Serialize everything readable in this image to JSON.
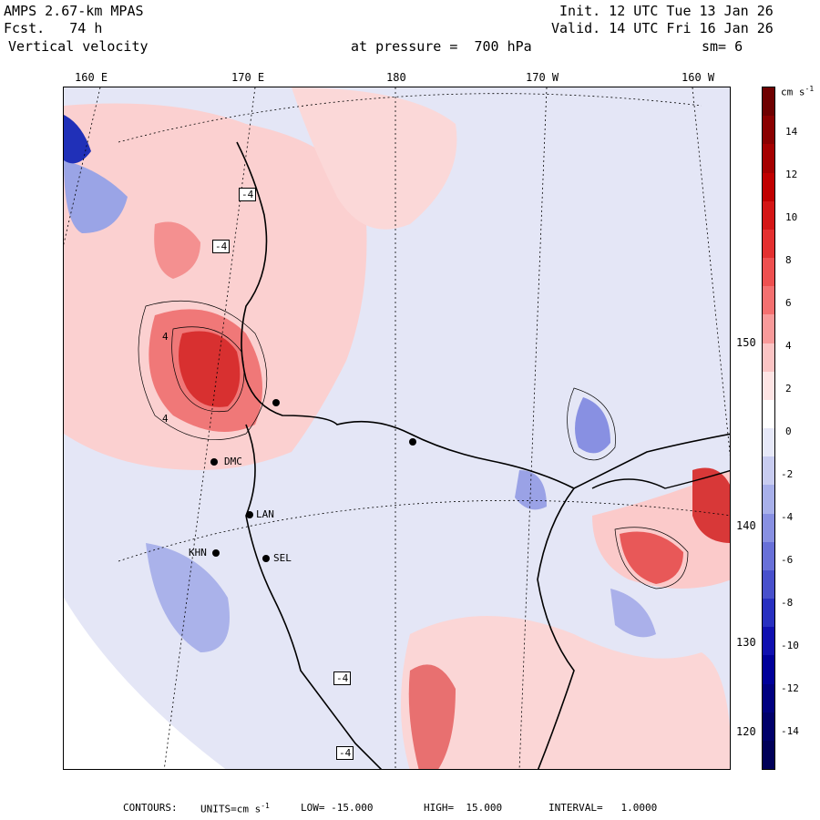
{
  "header": {
    "model": "AMPS 2.67-km MPAS",
    "forecast": "Fcst.   74 h",
    "field": "Vertical velocity",
    "init": "Init. 12 UTC Tue 13 Jan 26",
    "valid": "Valid. 14 UTC Fri 16 Jan 26",
    "level": "at pressure =  700 hPa",
    "smoothing": "sm= 6"
  },
  "longitude_labels": [
    "160 E",
    "170 E",
    "180",
    "170 W",
    "160 W"
  ],
  "latitude_labels": [
    "150 W",
    "140 W",
    "130 W",
    "120 W"
  ],
  "colorbar": {
    "units": "cm s",
    "units_exp": "-1",
    "ticks": [
      "14",
      "12",
      "10",
      "8",
      "6",
      "4",
      "2",
      "0",
      "-2",
      "-4",
      "-6",
      "-8",
      "-10",
      "-12",
      "-14"
    ],
    "colors_top_to_bottom": [
      "#6e0000",
      "#8a0000",
      "#a50000",
      "#c00000",
      "#d41616",
      "#e43030",
      "#ee5050",
      "#f47070",
      "#f89a9a",
      "#fbc4c4",
      "#fde4e4",
      "#ffffff",
      "#e6e8f8",
      "#c8ccf0",
      "#a8b0ea",
      "#8890e2",
      "#6870d8",
      "#4850cc",
      "#2830c0",
      "#1010b0",
      "#00009a",
      "#000080",
      "#00006a",
      "#000058"
    ]
  },
  "stations": [
    {
      "code": "DMC"
    },
    {
      "code": "LAN"
    },
    {
      "code": "KHN"
    },
    {
      "code": "SEL"
    }
  ],
  "extrema_markers": [
    "-4",
    "-4",
    "-4",
    "-4",
    "4",
    "4"
  ],
  "footer": {
    "contours": "CONTOURS:",
    "units_label": "UNITS=cm s",
    "units_exp": "-1",
    "low": "LOW= -15.000",
    "high": "HIGH=  15.000",
    "interval": "INTERVAL=   1.0000"
  },
  "colors": {
    "positive": "#e84a4a",
    "negative": "#5060d0",
    "background": "#e4e6f6"
  }
}
